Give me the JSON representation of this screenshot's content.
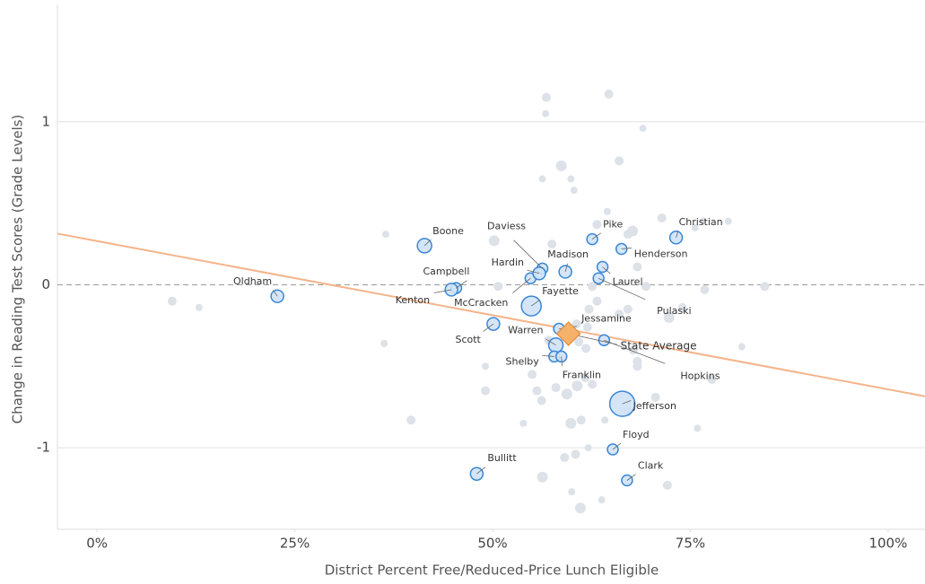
{
  "chart_data": {
    "type": "scatter",
    "x_label": "District Percent Free/Reduced-Price Lunch Eligible",
    "y_label": "Change in Reading Test Scores (Grade Levels)",
    "xlim": [
      -5,
      105
    ],
    "ylim": [
      -1.5,
      1.72
    ],
    "xticks": [
      {
        "value": 0,
        "label": "0%"
      },
      {
        "value": 25,
        "label": "25%"
      },
      {
        "value": 50,
        "label": "50%"
      },
      {
        "value": 75,
        "label": "75%"
      },
      {
        "value": 100,
        "label": "100%"
      }
    ],
    "yticks": [
      -1,
      0,
      1
    ],
    "grid": true,
    "series": [
      {
        "color": "#dde1e8",
        "x": [
          9.5,
          12.9,
          36.5,
          36.3,
          39.7,
          49.1,
          49.1,
          50.2,
          50.7,
          53.9,
          56.3,
          56.8,
          56.7,
          56.3,
          58.7,
          59.9,
          60.3,
          57.5,
          64.7,
          66.0,
          69.0,
          64.5,
          63.2,
          67.1,
          67.7,
          68.3,
          71.4,
          76.6,
          79.8,
          75.6,
          74.0,
          72.3,
          76.8,
          84.4,
          81.5,
          77.7,
          75.9,
          72.1,
          70.6,
          68.3,
          68.3,
          67.1,
          63.8,
          61.1,
          60.0,
          62.1,
          60.5,
          59.1,
          59.9,
          59.4,
          60.7,
          61.7,
          62.6,
          61.2,
          64.2,
          55.6,
          55.0,
          56.2,
          58.0,
          62.2,
          63.2,
          61.8,
          60.9,
          66.0,
          67.1,
          67.8,
          69.4,
          62.6,
          57.1,
          60.6,
          62.0
        ],
        "y": [
          -0.1,
          -0.14,
          0.31,
          -0.36,
          -0.83,
          -0.5,
          -0.65,
          0.27,
          -0.01,
          -0.85,
          -1.18,
          1.15,
          1.05,
          0.65,
          0.73,
          0.65,
          0.58,
          0.25,
          1.17,
          0.76,
          0.96,
          0.45,
          0.37,
          0.31,
          0.33,
          0.11,
          0.41,
          0.39,
          0.39,
          0.35,
          -0.14,
          -0.2,
          -0.03,
          -0.01,
          -0.38,
          -0.58,
          -0.88,
          -1.23,
          -0.69,
          -0.5,
          -0.47,
          -0.78,
          -1.32,
          -1.37,
          -1.27,
          -1.0,
          -1.04,
          -1.06,
          -0.85,
          -0.67,
          -0.62,
          -0.57,
          -0.61,
          -0.83,
          -0.83,
          -0.65,
          -0.55,
          -0.71,
          -0.63,
          -0.15,
          -0.1,
          -0.39,
          -0.35,
          -0.18,
          -0.15,
          -0.4,
          -0.01,
          -0.01,
          -0.34,
          -0.24,
          -0.26
        ],
        "size": [
          5,
          4,
          4,
          4,
          5,
          4,
          5,
          6,
          5,
          4,
          6,
          5,
          4,
          4,
          6,
          4,
          4,
          5,
          5,
          5,
          4,
          4,
          5,
          5,
          6,
          5,
          5,
          4,
          4,
          4,
          5,
          6,
          5,
          5,
          4,
          5,
          4,
          5,
          5,
          5,
          5,
          5,
          4,
          6,
          4,
          4,
          5,
          5,
          6,
          6,
          6,
          5,
          5,
          5,
          4,
          5,
          5,
          5,
          5,
          5,
          5,
          5,
          5,
          5,
          5,
          5,
          5,
          5,
          5,
          5,
          5
        ]
      },
      {
        "color": "#cfe2f7",
        "stroke": "#3b87d6",
        "labels": [
          "Oldham",
          "Boone",
          "Campbell",
          "Kenton",
          "Bullitt",
          "Scott",
          "Fayette",
          "McCracken",
          "Daviess",
          "Hardin",
          "Madison",
          "Pike",
          "Henderson",
          "Christian",
          "Laurel",
          "Pulaski",
          "Jessamine",
          "Warren",
          "Shelby",
          "Franklin",
          "Hopkins",
          "Jefferson",
          "Floyd",
          "Clark"
        ],
        "x": [
          22.8,
          41.4,
          45.4,
          44.8,
          48.0,
          50.1,
          54.9,
          54.8,
          56.3,
          55.9,
          59.2,
          62.6,
          66.3,
          73.2,
          63.9,
          63.4,
          58.4,
          58.0,
          57.8,
          58.7,
          64.1,
          66.4,
          65.2,
          67.0
        ],
        "y": [
          -0.07,
          0.24,
          -0.02,
          -0.03,
          -1.16,
          -0.24,
          -0.13,
          0.04,
          0.1,
          0.07,
          0.08,
          0.28,
          0.22,
          0.29,
          0.11,
          0.04,
          -0.27,
          -0.37,
          -0.44,
          -0.44,
          -0.34,
          -0.73,
          -1.01,
          -1.2
        ],
        "size": [
          7,
          8,
          6,
          7,
          7,
          7,
          11,
          6,
          6,
          7,
          7,
          6,
          6,
          7,
          6,
          6,
          6,
          8,
          6,
          6,
          6,
          14,
          6,
          6
        ]
      }
    ],
    "state_average": {
      "label": "State Average",
      "x": 59.6,
      "y": -0.3,
      "color": "#f6b26b",
      "stroke": "#e08a3c"
    },
    "trend": {
      "color": "#f4b48a",
      "x": [
        -5,
        105
      ],
      "y": [
        0.314,
        -0.687
      ]
    }
  }
}
